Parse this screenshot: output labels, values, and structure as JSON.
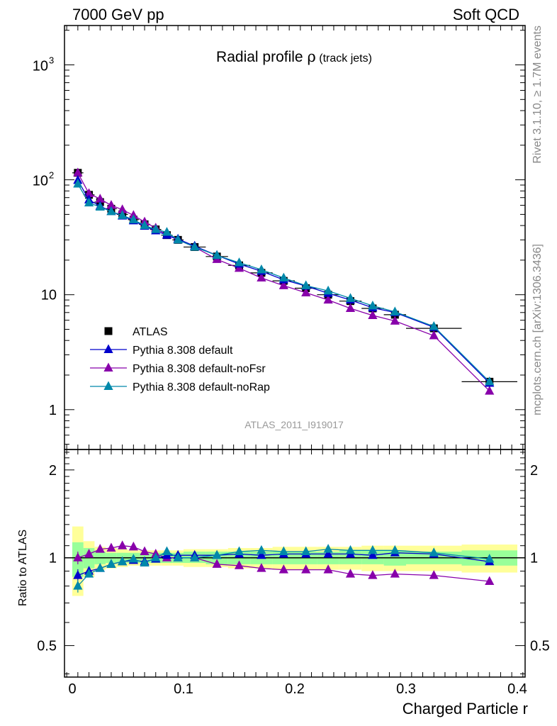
{
  "header": {
    "left": "7000 GeV pp",
    "right": "Soft QCD"
  },
  "title": {
    "main": "Radial profile ",
    "symbol": "ρ",
    "sub": " (track jets)"
  },
  "side_labels": {
    "rivet": "Rivet 3.1.10, ≥ 1.7M events",
    "mcplots": "mcplots.cern.ch [arXiv:1306.3436]"
  },
  "analysis_id": "ATLAS_2011_I919017",
  "axes": {
    "xlabel": "Charged Particle r",
    "ratio_ylabel": "Ratio to ATLAS",
    "x_ticks": [
      "0",
      "0.1",
      "0.2",
      "0.3",
      "0.4"
    ],
    "main_y_ticks": [
      "1",
      "10",
      "10",
      "2",
      "10",
      "3"
    ],
    "ratio_y_ticks": [
      "0.5",
      "1",
      "2"
    ]
  },
  "legend": {
    "items": [
      "ATLAS",
      "Pythia 8.308 default",
      "Pythia 8.308 default-noFsr",
      "Pythia 8.308 default-noRap"
    ]
  },
  "chart_data": {
    "type": "line",
    "xlim": [
      0,
      0.4
    ],
    "main_ylim": [
      0.45,
      2200
    ],
    "main_yscale": "log",
    "ratio_ylim": [
      0.39,
      2.35
    ],
    "ratio_yscale": "log",
    "x": [
      0.005,
      0.015,
      0.025,
      0.035,
      0.045,
      0.055,
      0.065,
      0.075,
      0.085,
      0.095,
      0.11,
      0.13,
      0.15,
      0.17,
      0.19,
      0.21,
      0.23,
      0.25,
      0.27,
      0.29,
      0.325,
      0.375
    ],
    "x_err": [
      0.005,
      0.005,
      0.005,
      0.005,
      0.005,
      0.005,
      0.005,
      0.005,
      0.005,
      0.005,
      0.01,
      0.01,
      0.01,
      0.01,
      0.01,
      0.01,
      0.01,
      0.01,
      0.01,
      0.01,
      0.025,
      0.025
    ],
    "series": [
      {
        "name": "ATLAS",
        "color": "#000000",
        "marker": "square",
        "values": [
          115,
          74,
          64,
          56,
          50,
          45,
          41,
          37,
          33,
          30,
          26,
          21.5,
          18,
          15.5,
          13.2,
          11.4,
          10,
          8.8,
          7.6,
          6.7,
          5.1,
          1.75
        ],
        "ratio": [
          1,
          1,
          1,
          1,
          1,
          1,
          1,
          1,
          1,
          1,
          1,
          1,
          1,
          1,
          1,
          1,
          1,
          1,
          1,
          1,
          1,
          1
        ]
      },
      {
        "name": "Pythia 8.308 default",
        "color": "#0000cc",
        "marker": "triangle",
        "values": [
          99,
          67,
          59,
          53,
          48.5,
          44,
          39.5,
          36,
          33,
          30.5,
          26.5,
          22,
          18.5,
          16,
          13.5,
          11.9,
          10.3,
          9,
          7.7,
          7,
          5.2,
          1.7
        ],
        "ratio": [
          0.87,
          0.9,
          0.92,
          0.95,
          0.97,
          0.98,
          0.97,
          0.99,
          1.02,
          1.02,
          1.02,
          1.02,
          1.03,
          1.02,
          1.03,
          1.03,
          1.03,
          1.03,
          1.02,
          1.04,
          1.03,
          0.97
        ]
      },
      {
        "name": "Pythia 8.308 default-noFsr",
        "color": "#8800aa",
        "marker": "triangle",
        "values": [
          115,
          76,
          68,
          60,
          55,
          49,
          43,
          38,
          33,
          30,
          26,
          20.3,
          17,
          14,
          12,
          10.4,
          9,
          7.6,
          6.6,
          5.9,
          4.4,
          1.45
        ],
        "ratio": [
          1.0,
          1.03,
          1.07,
          1.08,
          1.1,
          1.09,
          1.05,
          1.03,
          1.0,
          1.0,
          1.0,
          0.95,
          0.94,
          0.92,
          0.91,
          0.91,
          0.91,
          0.88,
          0.87,
          0.88,
          0.87,
          0.83
        ]
      },
      {
        "name": "Pythia 8.308 default-noRap",
        "color": "#0088aa",
        "marker": "triangle",
        "values": [
          92,
          63,
          58,
          53,
          49,
          45,
          40,
          37,
          35,
          30,
          26,
          22,
          19,
          16.5,
          14,
          12,
          10.8,
          9.3,
          8,
          7.1,
          5.3,
          1.75
        ],
        "ratio": [
          0.8,
          0.88,
          0.92,
          0.95,
          0.97,
          0.99,
          0.96,
          1.0,
          1.05,
          1.0,
          1.0,
          1.02,
          1.05,
          1.06,
          1.05,
          1.05,
          1.07,
          1.06,
          1.06,
          1.06,
          1.04,
          0.99
        ]
      }
    ],
    "ratio_band_yellow": [
      [
        0.74,
        1.28
      ],
      [
        0.86,
        1.14
      ],
      [
        0.91,
        1.09
      ],
      [
        0.92,
        1.08
      ],
      [
        0.93,
        1.07
      ],
      [
        0.94,
        1.06
      ],
      [
        0.94,
        1.06
      ],
      [
        0.94,
        1.06
      ],
      [
        0.94,
        1.06
      ],
      [
        0.94,
        1.06
      ],
      [
        0.93,
        1.07
      ],
      [
        0.93,
        1.07
      ],
      [
        0.92,
        1.08
      ],
      [
        0.92,
        1.08
      ],
      [
        0.91,
        1.09
      ],
      [
        0.91,
        1.09
      ],
      [
        0.91,
        1.09
      ],
      [
        0.91,
        1.09
      ],
      [
        0.9,
        1.1
      ],
      [
        0.9,
        1.1
      ],
      [
        0.9,
        1.1
      ],
      [
        0.89,
        1.11
      ]
    ],
    "ratio_band_green": [
      [
        0.86,
        1.13
      ],
      [
        0.92,
        1.08
      ],
      [
        0.95,
        1.05
      ],
      [
        0.96,
        1.04
      ],
      [
        0.96,
        1.04
      ],
      [
        0.96,
        1.04
      ],
      [
        0.96,
        1.04
      ],
      [
        0.96,
        1.04
      ],
      [
        0.96,
        1.04
      ],
      [
        0.96,
        1.04
      ],
      [
        0.96,
        1.05
      ],
      [
        0.95,
        1.05
      ],
      [
        0.95,
        1.05
      ],
      [
        0.95,
        1.05
      ],
      [
        0.95,
        1.05
      ],
      [
        0.95,
        1.05
      ],
      [
        0.95,
        1.05
      ],
      [
        0.95,
        1.06
      ],
      [
        0.95,
        1.06
      ],
      [
        0.94,
        1.06
      ],
      [
        0.95,
        1.05
      ],
      [
        0.94,
        1.06
      ]
    ]
  }
}
